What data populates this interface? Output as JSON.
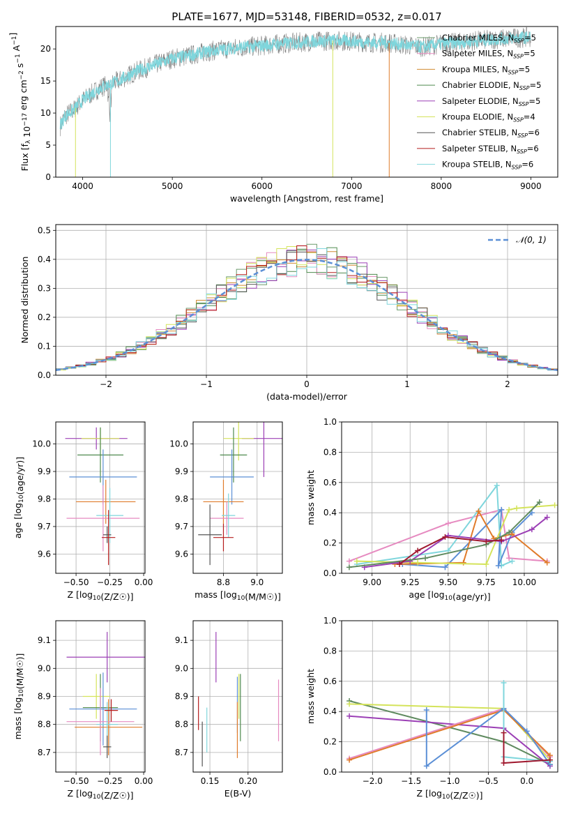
{
  "figure_title": "PLATE=1677, MJD=53148, FIBERID=0532, z=0.017",
  "models": [
    {
      "name": "Chabrier MILES",
      "nssp": "5",
      "color": "#6b9a6b"
    },
    {
      "name": "Salpeter MILES",
      "nssp": "5",
      "color": "#e68ac0"
    },
    {
      "name": "Kroupa MILES",
      "nssp": "5",
      "color": "#d08a30"
    },
    {
      "name": "Chabrier ELODIE",
      "nssp": "5",
      "color": "#4e8a4e"
    },
    {
      "name": "Salpeter ELODIE",
      "nssp": "5",
      "color": "#9b3fb5"
    },
    {
      "name": "Kroupa ELODIE",
      "nssp": "4",
      "color": "#d4e35a"
    },
    {
      "name": "Chabrier STELIB",
      "nssp": "6",
      "color": "#555555"
    },
    {
      "name": "Salpeter STELIB",
      "nssp": "6",
      "color": "#b51c1c"
    },
    {
      "name": "Kroupa STELIB",
      "nssp": "6",
      "color": "#7fd6dc"
    }
  ],
  "colors": {
    "spectrum_data": "#808080",
    "spectrum_model": "#7fd6dc",
    "gaussian": "#5b8fd6",
    "grid": "#b0b0b0",
    "blue": "#5b8fd6",
    "orange": "#e07b2a",
    "pink": "#e68ac0",
    "yellow": "#d4e35a",
    "cyan": "#7fd6dc",
    "purple": "#9b3fb5",
    "crimson": "#a0182e",
    "green": "#5f8a5f"
  },
  "chart_data": [
    {
      "id": "spectrum",
      "type": "line",
      "xlabel": "wavelength [Angstrom, rest frame]",
      "ylabel": "Flux [f_λ 10^-17 erg cm^-2 s^-1 A^-1]",
      "xlim": [
        3700,
        9300
      ],
      "ylim": [
        0,
        23.5
      ],
      "xticks": [
        "4000",
        "5000",
        "6000",
        "7000",
        "8000",
        "9000"
      ],
      "xtick_values": [
        4000,
        5000,
        6000,
        7000,
        8000,
        9000
      ],
      "yticks": [
        "0",
        "5",
        "10",
        "15",
        "20"
      ],
      "ytick_values": [
        0,
        5,
        10,
        15,
        20
      ],
      "x": [
        3750,
        3800,
        3900,
        4000,
        4100,
        4200,
        4300,
        4400,
        4500,
        4600,
        4800,
        5000,
        5200,
        5400,
        5600,
        5800,
        6000,
        6200,
        6400,
        6600,
        6800,
        7000,
        7200,
        7400,
        7600,
        7800,
        8000,
        8200,
        8400,
        8600,
        8800,
        9000
      ],
      "y": [
        8.0,
        9.5,
        10.5,
        12.0,
        13.0,
        14.0,
        14.5,
        15.0,
        15.8,
        16.5,
        17.5,
        18.5,
        19.0,
        19.6,
        20.0,
        20.3,
        20.5,
        20.8,
        21.0,
        21.2,
        21.3,
        21.2,
        21.0,
        21.0,
        20.6,
        20.3,
        20.8,
        21.0,
        21.3,
        21.5,
        21.7,
        21.8
      ],
      "grid": false,
      "legend_position": "top-right"
    },
    {
      "id": "residuals",
      "type": "histogram",
      "xlabel": "(data-model)/error",
      "ylabel": "Normed distribution",
      "xlim": [
        -2.5,
        2.5
      ],
      "ylim": [
        0,
        0.52
      ],
      "xticks": [
        "−2",
        "−1",
        "0",
        "1",
        "2"
      ],
      "xtick_values": [
        -2,
        -1,
        0,
        1,
        2
      ],
      "yticks": [
        "0.0",
        "0.1",
        "0.2",
        "0.3",
        "0.4",
        "0.5"
      ],
      "ytick_values": [
        0,
        0.1,
        0.2,
        0.3,
        0.4,
        0.5
      ],
      "bin_width": 0.1,
      "bin_start": -2.5,
      "gaussian_label": "𝒩(0, 1)",
      "grid": true,
      "legend_position": "top-right"
    },
    {
      "id": "age-vs-z",
      "type": "errorbar",
      "xlabel": "Z [log10(Z/Z☉)]",
      "ylabel": "age  [log10(age/yr)]",
      "xlim": [
        -0.65,
        0.01
      ],
      "ylim": [
        9.53,
        10.08
      ],
      "xticks": [
        "−0.50",
        "−0.25",
        "0.00"
      ],
      "xtick_values": [
        -0.5,
        -0.25,
        0.0
      ],
      "yticks": [
        "9.6",
        "9.7",
        "9.8",
        "9.9",
        "10.0"
      ],
      "ytick_values": [
        9.6,
        9.7,
        9.8,
        9.9,
        10.0
      ],
      "points": [
        {
          "x": -0.35,
          "y": 10.02,
          "xerr": 0.23,
          "yerr": 0.04,
          "color": "#9b3fb5"
        },
        {
          "x": -0.32,
          "y": 10.02,
          "xerr": 0.14,
          "yerr": 0.04,
          "color": "#d4e35a"
        },
        {
          "x": -0.32,
          "y": 9.96,
          "xerr": 0.17,
          "yerr": 0.1,
          "color": "#4e8a4e"
        },
        {
          "x": -0.3,
          "y": 9.88,
          "xerr": 0.25,
          "yerr": 0.1,
          "color": "#5b8fd6"
        },
        {
          "x": -0.28,
          "y": 9.79,
          "xerr": 0.22,
          "yerr": 0.08,
          "color": "#e07b2a"
        },
        {
          "x": -0.3,
          "y": 9.73,
          "xerr": 0.27,
          "yerr": 0.12,
          "color": "#e68ac0"
        },
        {
          "x": -0.25,
          "y": 9.74,
          "xerr": 0.1,
          "yerr": 0.1,
          "color": "#7fd6dc"
        },
        {
          "x": -0.27,
          "y": 9.67,
          "xerr": 0.03,
          "yerr": 0.03,
          "color": "#555555"
        },
        {
          "x": -0.26,
          "y": 9.66,
          "xerr": 0.05,
          "yerr": 0.1,
          "color": "#b51c1c"
        }
      ],
      "grid": true
    },
    {
      "id": "age-vs-mass",
      "type": "errorbar",
      "xlabel": "mass [log10(M/M☉)]",
      "ylabel": "",
      "xlim": [
        8.62,
        9.15
      ],
      "ylim": [
        9.53,
        10.08
      ],
      "xticks": [
        "8.8",
        "9.0"
      ],
      "xtick_values": [
        8.8,
        9.0
      ],
      "yticks": [
        "9.6",
        "9.7",
        "9.8",
        "9.9",
        "10.0"
      ],
      "ytick_values": [
        9.6,
        9.7,
        9.8,
        9.9,
        10.0
      ],
      "points": [
        {
          "x": 9.04,
          "y": 10.02,
          "xerr": 0.13,
          "yerr": 0.14,
          "color": "#9b3fb5"
        },
        {
          "x": 8.89,
          "y": 10.02,
          "xerr": 0.09,
          "yerr": 0.08,
          "color": "#d4e35a"
        },
        {
          "x": 8.86,
          "y": 9.96,
          "xerr": 0.08,
          "yerr": 0.1,
          "color": "#4e8a4e"
        },
        {
          "x": 8.85,
          "y": 9.88,
          "xerr": 0.13,
          "yerr": 0.1,
          "color": "#5b8fd6"
        },
        {
          "x": 8.8,
          "y": 9.79,
          "xerr": 0.12,
          "yerr": 0.08,
          "color": "#e07b2a"
        },
        {
          "x": 8.82,
          "y": 9.73,
          "xerr": 0.1,
          "yerr": 0.06,
          "color": "#e68ac0"
        },
        {
          "x": 8.83,
          "y": 9.74,
          "xerr": 0.04,
          "yerr": 0.08,
          "color": "#7fd6dc"
        },
        {
          "x": 8.72,
          "y": 9.67,
          "xerr": 0.07,
          "yerr": 0.11,
          "color": "#555555"
        },
        {
          "x": 8.8,
          "y": 9.66,
          "xerr": 0.06,
          "yerr": 0.05,
          "color": "#b51c1c"
        }
      ],
      "grid": true
    },
    {
      "id": "weight-vs-age",
      "type": "line",
      "xlabel": "age  [log10(age/yr)]",
      "ylabel": "mass weight",
      "xlim": [
        8.8,
        10.22
      ],
      "ylim": [
        0,
        1
      ],
      "xticks": [
        "9.00",
        "9.25",
        "9.50",
        "9.75",
        "10.00"
      ],
      "xtick_values": [
        9.0,
        9.25,
        9.5,
        9.75,
        10.0
      ],
      "yticks": [
        "0.0",
        "0.2",
        "0.4",
        "0.6",
        "0.8",
        "1.0"
      ],
      "ytick_values": [
        0,
        0.2,
        0.4,
        0.6,
        0.8,
        1.0
      ],
      "series": [
        {
          "color": "#e68ac0",
          "x": [
            8.85,
            9.5,
            9.85,
            9.9,
            10.15
          ],
          "y": [
            0.08,
            0.33,
            0.42,
            0.1,
            0.08
          ]
        },
        {
          "color": "#7fd6dc",
          "x": [
            8.9,
            9.5,
            9.82,
            9.85,
            9.92
          ],
          "y": [
            0.06,
            0.15,
            0.58,
            0.05,
            0.08
          ]
        },
        {
          "color": "#5b8fd6",
          "x": [
            9.2,
            9.48,
            9.85,
            9.83,
            9.92,
            10.05
          ],
          "y": [
            0.06,
            0.04,
            0.42,
            0.05,
            0.27,
            0.4
          ]
        },
        {
          "color": "#e07b2a",
          "x": [
            9.15,
            9.6,
            9.7,
            9.8,
            9.92,
            10.15
          ],
          "y": [
            0.06,
            0.07,
            0.41,
            0.23,
            0.26,
            0.07
          ]
        },
        {
          "color": "#d4e35a",
          "x": [
            8.9,
            9.3,
            9.75,
            9.9,
            9.95,
            10.2
          ],
          "y": [
            0.08,
            0.07,
            0.06,
            0.42,
            0.43,
            0.45
          ]
        },
        {
          "color": "#9b3fb5",
          "x": [
            8.95,
            9.25,
            9.5,
            9.85,
            10.05,
            10.15
          ],
          "y": [
            0.04,
            0.08,
            0.25,
            0.21,
            0.29,
            0.37
          ]
        },
        {
          "color": "#5f8a5f",
          "x": [
            8.85,
            9.35,
            9.75,
            9.9,
            10.1
          ],
          "y": [
            0.04,
            0.1,
            0.19,
            0.27,
            0.47
          ]
        },
        {
          "color": "#a0182e",
          "x": [
            9.18,
            9.3,
            9.48,
            9.75,
            9.85
          ],
          "y": [
            0.06,
            0.15,
            0.24,
            0.21,
            0.22
          ]
        }
      ],
      "grid": true
    },
    {
      "id": "mass-vs-z",
      "type": "errorbar",
      "xlabel": "Z [log10(Z/Z☉)]",
      "ylabel": "mass [log10(M/M☉)]",
      "xlim": [
        -0.65,
        0.01
      ],
      "ylim": [
        8.63,
        9.17
      ],
      "xticks": [
        "−0.50",
        "−0.25",
        "0.00"
      ],
      "xtick_values": [
        -0.5,
        -0.25,
        0.0
      ],
      "yticks": [
        "8.7",
        "8.8",
        "8.9",
        "9.0",
        "9.1"
      ],
      "ytick_values": [
        8.7,
        8.8,
        8.9,
        9.0,
        9.1
      ],
      "points": [
        {
          "x": -0.27,
          "y": 9.04,
          "xerr": 0.3,
          "yerr": 0.09,
          "color": "#9b3fb5"
        },
        {
          "x": -0.35,
          "y": 8.9,
          "xerr": 0.1,
          "yerr": 0.08,
          "color": "#d4e35a"
        },
        {
          "x": -0.32,
          "y": 8.86,
          "xerr": 0.13,
          "yerr": 0.12,
          "color": "#4e8a4e"
        },
        {
          "x": -0.3,
          "y": 8.855,
          "xerr": 0.25,
          "yerr": 0.13,
          "color": "#5b8fd6"
        },
        {
          "x": -0.26,
          "y": 8.79,
          "xerr": 0.25,
          "yerr": 0.1,
          "color": "#e07b2a"
        },
        {
          "x": -0.32,
          "y": 8.81,
          "xerr": 0.25,
          "yerr": 0.12,
          "color": "#e68ac0"
        },
        {
          "x": -0.27,
          "y": 8.8,
          "xerr": 0.08,
          "yerr": 0.08,
          "color": "#7fd6dc"
        },
        {
          "x": -0.27,
          "y": 8.72,
          "xerr": 0.03,
          "yerr": 0.04,
          "color": "#555555"
        },
        {
          "x": -0.24,
          "y": 8.85,
          "xerr": 0.05,
          "yerr": 0.04,
          "color": "#b51c1c"
        }
      ],
      "grid": true
    },
    {
      "id": "mass-vs-ebv",
      "type": "errorbar",
      "xlabel": "E(B-V)",
      "ylabel": "",
      "xlim": [
        0.128,
        0.245
      ],
      "ylim": [
        8.63,
        9.17
      ],
      "xticks": [
        "0.15",
        "0.20"
      ],
      "xtick_values": [
        0.15,
        0.2
      ],
      "yticks": [
        "8.7",
        "8.8",
        "8.9",
        "9.0",
        "9.1"
      ],
      "ytick_values": [
        8.7,
        8.8,
        8.9,
        9.0,
        9.1
      ],
      "points": [
        {
          "x": 0.158,
          "y": 9.04,
          "xerr": 0,
          "yerr": 0.09,
          "color": "#9b3fb5"
        },
        {
          "x": 0.188,
          "y": 8.9,
          "xerr": 0,
          "yerr": 0.08,
          "color": "#d4e35a"
        },
        {
          "x": 0.19,
          "y": 8.86,
          "xerr": 0,
          "yerr": 0.12,
          "color": "#4e8a4e"
        },
        {
          "x": 0.186,
          "y": 8.87,
          "xerr": 0,
          "yerr": 0.1,
          "color": "#5b8fd6"
        },
        {
          "x": 0.186,
          "y": 8.78,
          "xerr": 0,
          "yerr": 0.1,
          "color": "#e07b2a"
        },
        {
          "x": 0.24,
          "y": 8.85,
          "xerr": 0,
          "yerr": 0.11,
          "color": "#e68ac0"
        },
        {
          "x": 0.146,
          "y": 8.78,
          "xerr": 0,
          "yerr": 0.08,
          "color": "#7fd6dc"
        },
        {
          "x": 0.14,
          "y": 8.73,
          "xerr": 0,
          "yerr": 0.08,
          "color": "#555555"
        },
        {
          "x": 0.135,
          "y": 8.84,
          "xerr": 0,
          "yerr": 0.06,
          "color": "#b51c1c"
        }
      ],
      "grid": true
    },
    {
      "id": "weight-vs-z",
      "type": "line",
      "xlabel": "Z [log10(Z/Z☉)]",
      "ylabel": "mass weight",
      "xlim": [
        -2.4,
        0.4
      ],
      "ylim": [
        0,
        1
      ],
      "xticks": [
        "−2.0",
        "−1.5",
        "−1.0",
        "−0.5",
        "0.0"
      ],
      "xtick_values": [
        -2.0,
        -1.5,
        -1.0,
        -0.5,
        0.0
      ],
      "yticks": [
        "0.0",
        "0.2",
        "0.4",
        "0.6",
        "0.8",
        "1.0"
      ],
      "ytick_values": [
        0,
        0.2,
        0.4,
        0.6,
        0.8,
        1.0
      ],
      "series": [
        {
          "color": "#5f8a5f",
          "x": [
            -2.3,
            -0.3,
            0.3
          ],
          "y": [
            0.47,
            0.2,
            0.05
          ]
        },
        {
          "color": "#d4e35a",
          "x": [
            -2.3,
            -0.3,
            0.3
          ],
          "y": [
            0.45,
            0.42,
            0.08
          ]
        },
        {
          "color": "#9b3fb5",
          "x": [
            -2.3,
            -0.3,
            0.3
          ],
          "y": [
            0.37,
            0.29,
            0.04
          ]
        },
        {
          "color": "#e68ac0",
          "x": [
            -2.3,
            -0.3,
            0.3
          ],
          "y": [
            0.09,
            0.42,
            0.1
          ]
        },
        {
          "color": "#e07b2a",
          "x": [
            -2.3,
            -0.3,
            0.3
          ],
          "y": [
            0.08,
            0.41,
            0.11
          ]
        },
        {
          "color": "#5b8fd6",
          "x": [
            -1.3,
            -1.3,
            -0.3,
            0.0,
            0.3
          ],
          "y": [
            0.41,
            0.04,
            0.42,
            0.27,
            0.05
          ]
        },
        {
          "color": "#7fd6dc",
          "x": [
            -0.3,
            -0.3,
            0.3
          ],
          "y": [
            0.59,
            0.1,
            0.07
          ]
        },
        {
          "color": "#a0182e",
          "x": [
            -0.3,
            -0.3,
            0.3
          ],
          "y": [
            0.26,
            0.06,
            0.08
          ]
        }
      ],
      "grid": true
    }
  ]
}
